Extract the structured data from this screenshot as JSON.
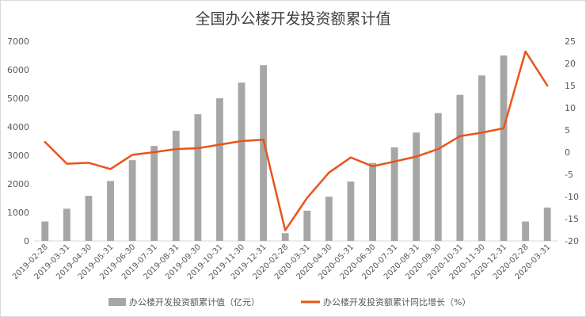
{
  "chart_data": {
    "type": "bar",
    "title": "全国办公楼开发投资额累计值",
    "categories": [
      "2019-02-28",
      "2019-03-31",
      "2019-04-30",
      "2019-05-31",
      "2019-06-30",
      "2019-07-31",
      "2019-08-31",
      "2019-09-30",
      "2019-10-31",
      "2019-11-30",
      "2019-12-31",
      "2020-02-28",
      "2020-03-31",
      "2020-04-30",
      "2020-05-31",
      "2020-06-30",
      "2020-07-31",
      "2020-08-31",
      "2020-09-30",
      "2020-10-31",
      "2020-11-30",
      "2020-12-31",
      "2020-02-28",
      "2020-03-31"
    ],
    "left_axis": {
      "ylim": [
        0,
        7000
      ],
      "ticks": [
        0,
        1000,
        2000,
        3000,
        4000,
        5000,
        6000,
        7000
      ]
    },
    "right_axis": {
      "ylim": [
        -20,
        25
      ],
      "ticks": [
        -20,
        -15,
        -10,
        -5,
        0,
        5,
        10,
        15,
        20,
        25
      ]
    },
    "series": [
      {
        "name": "办公楼开发投资额累计值（亿元）",
        "type": "bar",
        "axis": "left",
        "color": "#a6a6a6",
        "values": [
          680,
          1130,
          1580,
          2100,
          2830,
          3330,
          3860,
          4440,
          5000,
          5550,
          6160,
          270,
          1060,
          1550,
          2080,
          2730,
          3280,
          3800,
          4480,
          5120,
          5800,
          6500,
          680,
          1170
        ]
      },
      {
        "name": "办公楼开发投资额累计同比增长（%）",
        "type": "line",
        "axis": "right",
        "color": "#e8541b",
        "values": [
          2.3,
          -2.6,
          -2.4,
          -3.8,
          -0.6,
          0.0,
          0.7,
          0.9,
          1.7,
          2.5,
          2.8,
          -17.6,
          -10.3,
          -4.6,
          -1.2,
          -3.2,
          -2.1,
          -1.0,
          0.7,
          3.6,
          4.4,
          5.4,
          22.7,
          15.0
        ]
      }
    ],
    "legend_position": "bottom",
    "grid": false
  }
}
